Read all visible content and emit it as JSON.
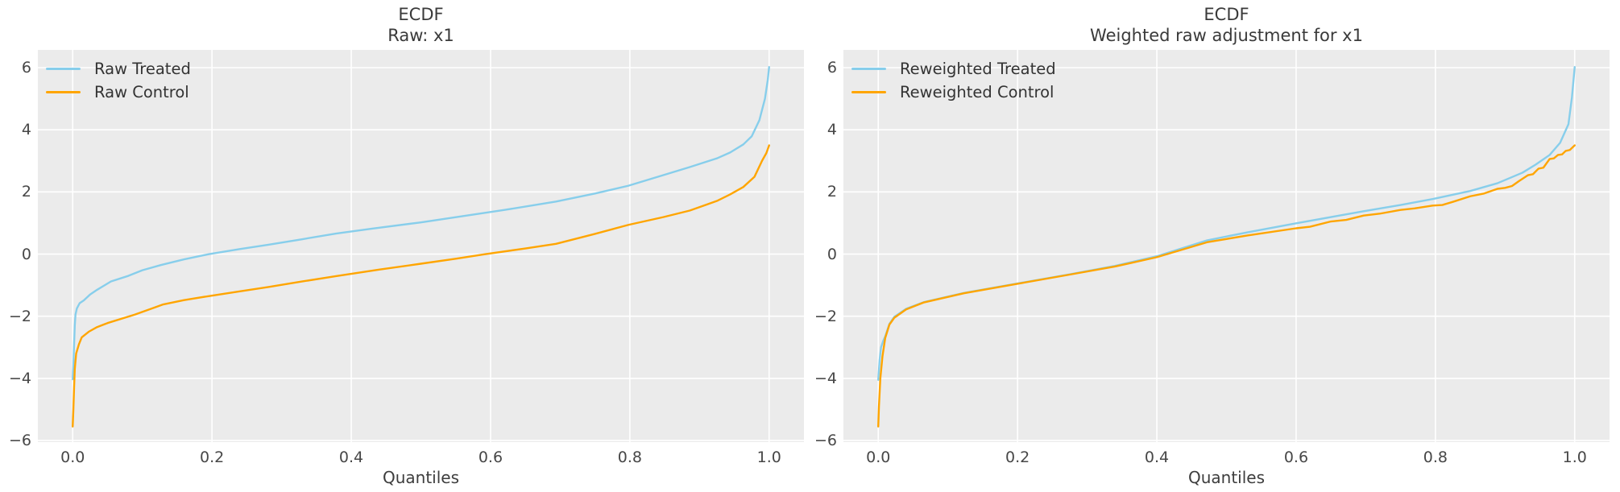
{
  "style": {
    "figure_bg": "#ffffff",
    "plot_bg": "#ebebeb",
    "grid_color": "#ffffff",
    "tick_color": "#474747",
    "title_color": "#3a3a3a",
    "treated_color": "#87CEEB",
    "control_color": "#FFA500"
  },
  "chart_data": [
    {
      "type": "line",
      "title": "ECDF",
      "subtitle": "Raw: x1",
      "xlabel": "Quantiles",
      "legend_position": "upper left",
      "grid": true,
      "xlim": [
        -0.05,
        1.05
      ],
      "ylim": [
        -6.05,
        6.57
      ],
      "xticks": [
        {
          "v": 0.0,
          "label": "0.0"
        },
        {
          "v": 0.2,
          "label": "0.2"
        },
        {
          "v": 0.4,
          "label": "0.4"
        },
        {
          "v": 0.6,
          "label": "0.6"
        },
        {
          "v": 0.8,
          "label": "0.8"
        },
        {
          "v": 1.0,
          "label": "1.0"
        }
      ],
      "yticks": [
        {
          "v": -6,
          "label": "−6"
        },
        {
          "v": -4,
          "label": "−4"
        },
        {
          "v": -2,
          "label": "−2"
        },
        {
          "v": 0,
          "label": "0"
        },
        {
          "v": 2,
          "label": "2"
        },
        {
          "v": 4,
          "label": "4"
        },
        {
          "v": 6,
          "label": "6"
        }
      ],
      "series": [
        {
          "name": "Raw Treated",
          "color": "#87CEEB",
          "points": [
            [
              0.0,
              -4.03
            ],
            [
              0.001,
              -3.6
            ],
            [
              0.002,
              -2.9
            ],
            [
              0.003,
              -2.3
            ],
            [
              0.004,
              -1.95
            ],
            [
              0.006,
              -1.75
            ],
            [
              0.01,
              -1.58
            ],
            [
              0.016,
              -1.49
            ],
            [
              0.025,
              -1.3
            ],
            [
              0.035,
              -1.15
            ],
            [
              0.055,
              -0.88
            ],
            [
              0.08,
              -0.7
            ],
            [
              0.1,
              -0.52
            ],
            [
              0.127,
              -0.35
            ],
            [
              0.16,
              -0.17
            ],
            [
              0.196,
              0.0
            ],
            [
              0.24,
              0.16
            ],
            [
              0.281,
              0.3
            ],
            [
              0.33,
              0.48
            ],
            [
              0.378,
              0.66
            ],
            [
              0.43,
              0.82
            ],
            [
              0.5,
              1.02
            ],
            [
              0.56,
              1.22
            ],
            [
              0.62,
              1.42
            ],
            [
              0.694,
              1.69
            ],
            [
              0.75,
              1.95
            ],
            [
              0.798,
              2.2
            ],
            [
              0.848,
              2.54
            ],
            [
              0.886,
              2.8
            ],
            [
              0.925,
              3.08
            ],
            [
              0.944,
              3.27
            ],
            [
              0.963,
              3.53
            ],
            [
              0.975,
              3.79
            ],
            [
              0.986,
              4.31
            ],
            [
              0.994,
              5.0
            ],
            [
              0.998,
              5.6
            ],
            [
              1.0,
              6.02
            ]
          ]
        },
        {
          "name": "Raw Control",
          "color": "#FFA500",
          "points": [
            [
              0.0,
              -5.55
            ],
            [
              0.001,
              -5.0
            ],
            [
              0.002,
              -4.3
            ],
            [
              0.003,
              -3.7
            ],
            [
              0.005,
              -3.2
            ],
            [
              0.009,
              -2.9
            ],
            [
              0.013,
              -2.68
            ],
            [
              0.023,
              -2.5
            ],
            [
              0.035,
              -2.35
            ],
            [
              0.05,
              -2.22
            ],
            [
              0.089,
              -1.95
            ],
            [
              0.13,
              -1.62
            ],
            [
              0.16,
              -1.48
            ],
            [
              0.196,
              -1.35
            ],
            [
              0.24,
              -1.2
            ],
            [
              0.281,
              -1.06
            ],
            [
              0.33,
              -0.88
            ],
            [
              0.378,
              -0.71
            ],
            [
              0.44,
              -0.5
            ],
            [
              0.5,
              -0.31
            ],
            [
              0.55,
              -0.15
            ],
            [
              0.593,
              0.0
            ],
            [
              0.65,
              0.18
            ],
            [
              0.694,
              0.33
            ],
            [
              0.75,
              0.65
            ],
            [
              0.798,
              0.94
            ],
            [
              0.848,
              1.19
            ],
            [
              0.886,
              1.4
            ],
            [
              0.925,
              1.71
            ],
            [
              0.944,
              1.92
            ],
            [
              0.963,
              2.16
            ],
            [
              0.979,
              2.49
            ],
            [
              0.99,
              3.01
            ],
            [
              0.996,
              3.25
            ],
            [
              1.0,
              3.5
            ]
          ]
        }
      ]
    },
    {
      "type": "line",
      "title": "ECDF",
      "subtitle": "Weighted raw adjustment for x1",
      "xlabel": "Quantiles",
      "legend_position": "upper left",
      "grid": true,
      "xlim": [
        -0.05,
        1.05
      ],
      "ylim": [
        -6.05,
        6.57
      ],
      "xticks": [
        {
          "v": 0.0,
          "label": "0.0"
        },
        {
          "v": 0.2,
          "label": "0.2"
        },
        {
          "v": 0.4,
          "label": "0.4"
        },
        {
          "v": 0.6,
          "label": "0.6"
        },
        {
          "v": 0.8,
          "label": "0.8"
        },
        {
          "v": 1.0,
          "label": "1.0"
        }
      ],
      "yticks": [
        {
          "v": -6,
          "label": "−6"
        },
        {
          "v": -4,
          "label": "−4"
        },
        {
          "v": -2,
          "label": "−2"
        },
        {
          "v": 0,
          "label": "0"
        },
        {
          "v": 2,
          "label": "2"
        },
        {
          "v": 4,
          "label": "4"
        },
        {
          "v": 6,
          "label": "6"
        }
      ],
      "series": [
        {
          "name": "Reweighted Treated",
          "color": "#87CEEB",
          "points": [
            [
              0.0,
              -4.05
            ],
            [
              0.002,
              -3.4
            ],
            [
              0.004,
              -3.0
            ],
            [
              0.007,
              -2.8
            ],
            [
              0.01,
              -2.65
            ],
            [
              0.016,
              -2.25
            ],
            [
              0.023,
              -2.02
            ],
            [
              0.04,
              -1.76
            ],
            [
              0.065,
              -1.55
            ],
            [
              0.123,
              -1.25
            ],
            [
              0.199,
              -0.95
            ],
            [
              0.275,
              -0.65
            ],
            [
              0.34,
              -0.38
            ],
            [
              0.4,
              -0.07
            ],
            [
              0.472,
              0.44
            ],
            [
              0.53,
              0.7
            ],
            [
              0.6,
              0.99
            ],
            [
              0.65,
              1.19
            ],
            [
              0.697,
              1.38
            ],
            [
              0.75,
              1.58
            ],
            [
              0.796,
              1.77
            ],
            [
              0.85,
              2.03
            ],
            [
              0.889,
              2.28
            ],
            [
              0.925,
              2.62
            ],
            [
              0.944,
              2.88
            ],
            [
              0.964,
              3.19
            ],
            [
              0.979,
              3.58
            ],
            [
              0.991,
              4.18
            ],
            [
              0.996,
              5.04
            ],
            [
              1.0,
              6.02
            ]
          ]
        },
        {
          "name": "Reweighted Control",
          "color": "#FFA500",
          "points": [
            [
              0.0,
              -5.55
            ],
            [
              0.001,
              -4.9
            ],
            [
              0.003,
              -4.0
            ],
            [
              0.006,
              -3.3
            ],
            [
              0.01,
              -2.7
            ],
            [
              0.016,
              -2.27
            ],
            [
              0.023,
              -2.05
            ],
            [
              0.04,
              -1.78
            ],
            [
              0.065,
              -1.56
            ],
            [
              0.123,
              -1.26
            ],
            [
              0.199,
              -0.96
            ],
            [
              0.275,
              -0.66
            ],
            [
              0.34,
              -0.4
            ],
            [
              0.4,
              -0.1
            ],
            [
              0.472,
              0.38
            ],
            [
              0.53,
              0.6
            ],
            [
              0.6,
              0.83
            ],
            [
              0.62,
              0.88
            ],
            [
              0.65,
              1.05
            ],
            [
              0.672,
              1.1
            ],
            [
              0.697,
              1.24
            ],
            [
              0.72,
              1.3
            ],
            [
              0.75,
              1.42
            ],
            [
              0.77,
              1.47
            ],
            [
              0.796,
              1.56
            ],
            [
              0.81,
              1.58
            ],
            [
              0.825,
              1.68
            ],
            [
              0.85,
              1.86
            ],
            [
              0.87,
              1.95
            ],
            [
              0.889,
              2.1
            ],
            [
              0.9,
              2.13
            ],
            [
              0.91,
              2.19
            ],
            [
              0.92,
              2.35
            ],
            [
              0.933,
              2.54
            ],
            [
              0.94,
              2.57
            ],
            [
              0.948,
              2.75
            ],
            [
              0.955,
              2.78
            ],
            [
              0.964,
              3.06
            ],
            [
              0.97,
              3.08
            ],
            [
              0.976,
              3.19
            ],
            [
              0.982,
              3.21
            ],
            [
              0.987,
              3.32
            ],
            [
              0.993,
              3.35
            ],
            [
              1.0,
              3.5
            ]
          ]
        }
      ]
    }
  ]
}
